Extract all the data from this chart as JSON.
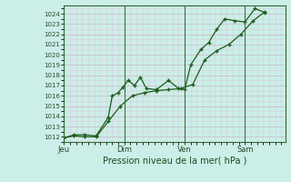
{
  "xlabel": "Pression niveau de la mer( hPa )",
  "ylim": [
    1011.5,
    1024.8
  ],
  "yticks": [
    1012,
    1013,
    1014,
    1015,
    1016,
    1017,
    1018,
    1019,
    1020,
    1021,
    1022,
    1023,
    1024
  ],
  "xtick_labels": [
    "Jeu",
    "Dim",
    "Ven",
    "Sam"
  ],
  "xtick_positions": [
    0,
    30,
    60,
    90
  ],
  "xlim": [
    0,
    110
  ],
  "background_color": "#cceee8",
  "grid_color_major": "#c8b8c8",
  "grid_color_minor": "#d8ccd8",
  "line_color": "#1a5c1a",
  "line1_x": [
    0,
    5,
    10,
    16,
    22,
    24,
    27,
    29,
    32,
    35,
    38,
    41,
    46,
    52,
    57,
    60,
    63,
    68,
    72,
    76,
    80,
    85,
    90,
    95,
    100
  ],
  "line1_y": [
    1011.9,
    1012.2,
    1012.2,
    1012.1,
    1013.9,
    1016.0,
    1016.3,
    1016.8,
    1017.5,
    1017.0,
    1017.8,
    1016.7,
    1016.6,
    1017.5,
    1016.7,
    1016.6,
    1019.0,
    1020.5,
    1021.2,
    1022.5,
    1023.5,
    1023.3,
    1023.2,
    1024.5,
    1024.1
  ],
  "line2_x": [
    0,
    5,
    10,
    16,
    22,
    28,
    34,
    40,
    46,
    52,
    58,
    64,
    70,
    76,
    82,
    88,
    94,
    100
  ],
  "line2_y": [
    1011.9,
    1012.1,
    1012.0,
    1012.0,
    1013.5,
    1015.0,
    1016.0,
    1016.3,
    1016.5,
    1016.6,
    1016.7,
    1017.1,
    1019.5,
    1020.4,
    1021.0,
    1022.0,
    1023.3,
    1024.2
  ],
  "figsize": [
    3.2,
    2.0
  ],
  "dpi": 100
}
